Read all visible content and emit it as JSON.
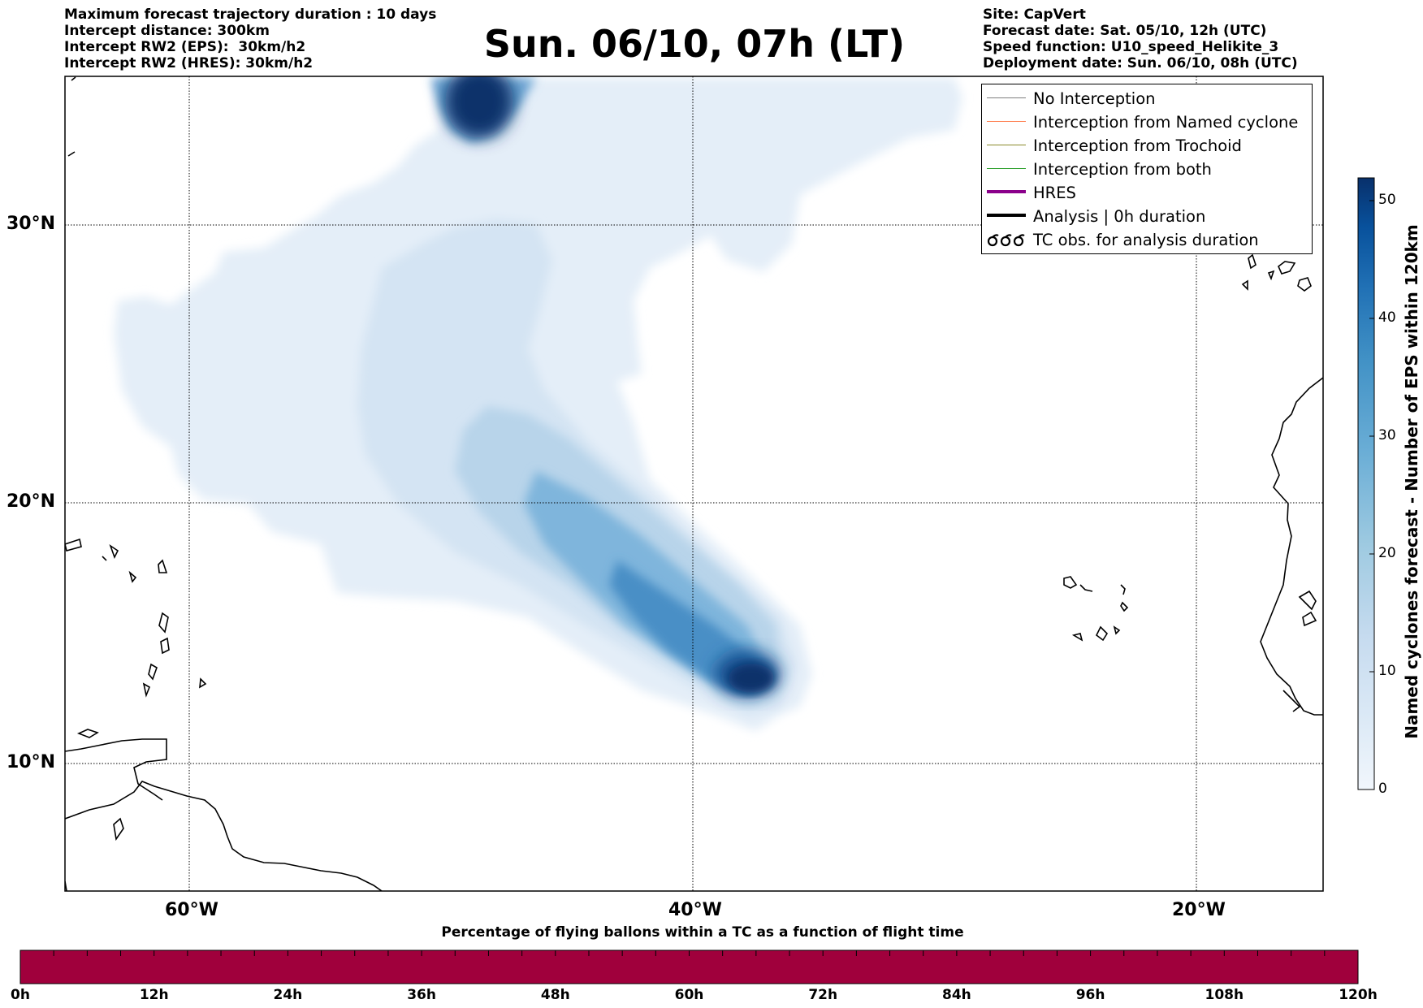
{
  "header_left": [
    "Maximum forecast trajectory duration : 10 days",
    "Intercept distance: 300km",
    "Intercept RW2 (EPS):  30km/h2",
    "Intercept RW2 (HRES): 30km/h2"
  ],
  "header_right": [
    "Site: CapVert",
    "Forecast date: Sat. 05/10, 12h (UTC)",
    "Speed function: U10_speed_Helikite_3",
    "Deployment date: Sun. 06/10, 08h (UTC)"
  ],
  "title": "Sun. 06/10, 07h (LT)",
  "map": {
    "lat_labels": [
      "30°N",
      "20°N",
      "10°N"
    ],
    "lon_labels": [
      "60°W",
      "40°W",
      "20°W"
    ],
    "lon_range": [
      -65,
      -15
    ],
    "lat_range": [
      5,
      35
    ],
    "gridlines": true
  },
  "legend": [
    {
      "label": "No Interception",
      "color": "#7f7f7f",
      "width": 1
    },
    {
      "label": "Interception from Named cyclone",
      "color": "#ff7f50",
      "width": 1.5
    },
    {
      "label": "Interception from Trochoid",
      "color": "#8b8b2a",
      "width": 1.5
    },
    {
      "label": "Interception from both",
      "color": "#2ca02c",
      "width": 1.5
    },
    {
      "label": "HRES",
      "color": "#8b008b",
      "width": 4
    },
    {
      "label": "Analysis | 0h duration",
      "color": "#000000",
      "width": 4
    },
    {
      "label": "TC obs. for analysis duration",
      "color": "#000000",
      "symbol": "cyclone-icon"
    }
  ],
  "colorbar": {
    "label": "Named cyclones forecast - Number of EPS within 120km",
    "ticks": [
      "0",
      "10",
      "20",
      "30",
      "40",
      "50"
    ],
    "range": [
      0,
      52
    ],
    "colors": [
      "#f1f6fc",
      "#dbe9f6",
      "#c6dbef",
      "#9ecae1",
      "#6baed6",
      "#4292c6",
      "#2171b5",
      "#08519c",
      "#08306b"
    ]
  },
  "time_bar": {
    "title": "Percentage of flying ballons within a TC as a function of flight time",
    "labels": [
      "0h",
      "12h",
      "24h",
      "36h",
      "48h",
      "60h",
      "72h",
      "84h",
      "96h",
      "108h",
      "120h"
    ],
    "color": "#a0003c"
  }
}
